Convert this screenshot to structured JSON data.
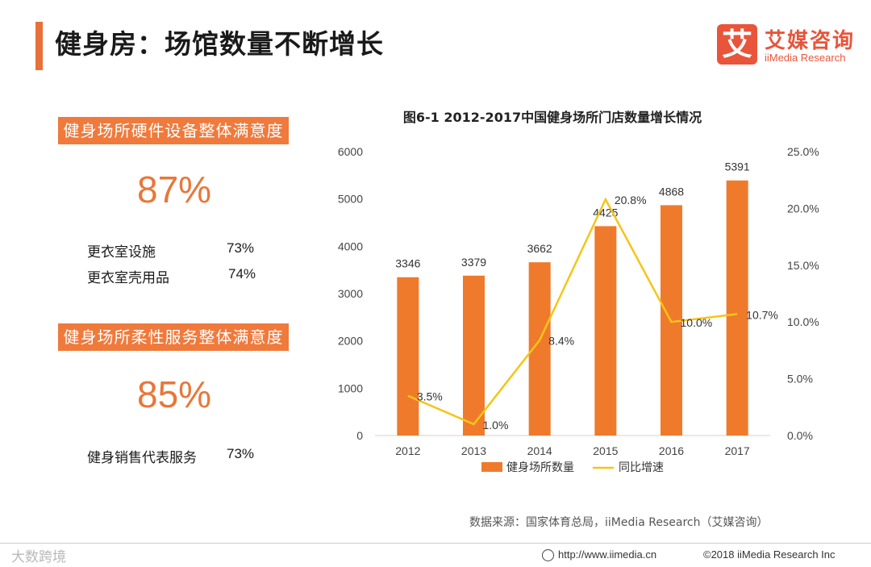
{
  "header": {
    "title": "健身房：场馆数量不断增长",
    "logo_mark": "艾",
    "logo_cn": "艾媒咨询",
    "logo_en": "iiMedia Research"
  },
  "left_panel": {
    "hardware": {
      "badge": "健身场所硬件设备整体满意度",
      "percent": "87%",
      "items": [
        {
          "label": "更衣室设施",
          "value": "73%"
        },
        {
          "label": "更衣室壳用品",
          "value": "74%"
        }
      ]
    },
    "service": {
      "badge": "健身场所柔性服务整体满意度",
      "percent": "85%",
      "items": [
        {
          "label": "健身销售代表服务",
          "value": "73%"
        }
      ]
    }
  },
  "colors": {
    "accent": "#e8703a",
    "bar": "#ef7a2c",
    "line": "#f5c518"
  },
  "chart_data": {
    "type": "bar",
    "title": "图6-1 2012-2017中国健身场所门店数量增长情况",
    "categories": [
      "2012",
      "2013",
      "2014",
      "2015",
      "2016",
      "2017"
    ],
    "series": [
      {
        "name": "健身场所数量",
        "type": "bar",
        "axis": "left",
        "values": [
          3346,
          3379,
          3662,
          4425,
          4868,
          5391
        ]
      },
      {
        "name": "同比增速",
        "type": "line",
        "axis": "right",
        "values": [
          3.5,
          1.0,
          8.4,
          20.8,
          10.0,
          10.7
        ],
        "labels": [
          "3.5%",
          "1.0%",
          "8.4%",
          "20.8%",
          "10.0%",
          "10.7%"
        ]
      }
    ],
    "ylim": [
      0,
      6000
    ],
    "y_ticks": [
      "0",
      "1000",
      "2000",
      "3000",
      "4000",
      "5000",
      "6000"
    ],
    "y2lim": [
      0,
      25
    ],
    "y2_ticks": [
      "0.0%",
      "5.0%",
      "10.0%",
      "15.0%",
      "20.0%",
      "25.0%"
    ],
    "legend": [
      "健身场所数量",
      "同比增速"
    ],
    "legend_position": "bottom",
    "grid": false
  },
  "source": "数据来源：国家体育总局，iiMedia Research（艾媒咨询）",
  "footer": {
    "left_mark": "大数跨境",
    "url": "http://www.iimedia.cn",
    "copyright": "©2018  iiMedia Research  Inc"
  }
}
